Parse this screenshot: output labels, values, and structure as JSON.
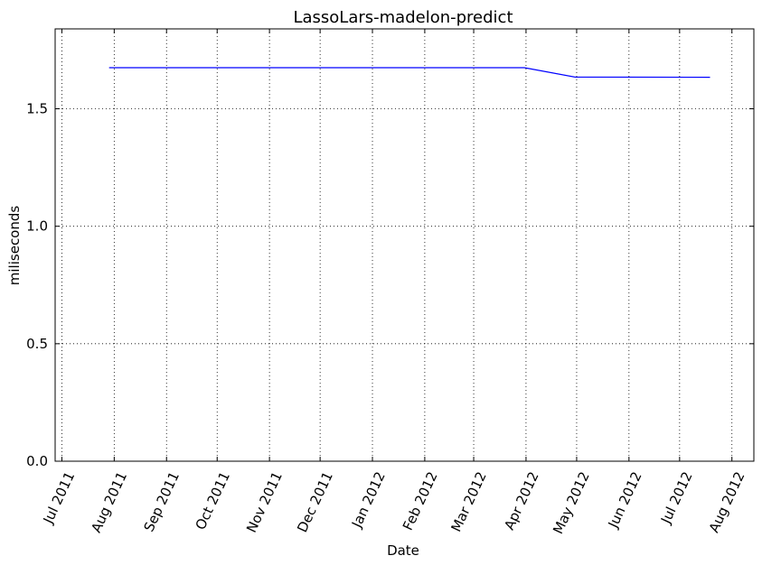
{
  "chart_data": {
    "type": "line",
    "title": "LassoLars-madelon-predict",
    "xlabel": "Date",
    "ylabel": "miliseconds",
    "x_axis": "date",
    "xlim": [
      "2011-06-27",
      "2012-08-14"
    ],
    "ylim": [
      0,
      1.84
    ],
    "grid": true,
    "grid_style": "dotted",
    "legend": "none",
    "line_color": "#0000ff",
    "x_ticks": [
      {
        "date": "2011-07-01",
        "label": "Jul 2011"
      },
      {
        "date": "2011-08-01",
        "label": "Aug 2011"
      },
      {
        "date": "2011-09-01",
        "label": "Sep 2011"
      },
      {
        "date": "2011-10-01",
        "label": "Oct 2011"
      },
      {
        "date": "2011-11-01",
        "label": "Nov 2011"
      },
      {
        "date": "2011-12-01",
        "label": "Dec 2011"
      },
      {
        "date": "2012-01-01",
        "label": "Jan 2012"
      },
      {
        "date": "2012-02-01",
        "label": "Feb 2012"
      },
      {
        "date": "2012-03-01",
        "label": "Mar 2012"
      },
      {
        "date": "2012-04-01",
        "label": "Apr 2012"
      },
      {
        "date": "2012-05-01",
        "label": "May 2012"
      },
      {
        "date": "2012-06-01",
        "label": "Jun 2012"
      },
      {
        "date": "2012-07-01",
        "label": "Jul 2012"
      },
      {
        "date": "2012-08-01",
        "label": "Aug 2012"
      }
    ],
    "y_ticks": [
      {
        "value": 0.0,
        "label": "0.0"
      },
      {
        "value": 0.5,
        "label": "0.5"
      },
      {
        "value": 1.0,
        "label": "1.0"
      },
      {
        "value": 1.5,
        "label": "1.5"
      }
    ],
    "series": [
      {
        "points": [
          {
            "x": "2011-07-29",
            "y": 1.675
          },
          {
            "x": "2012-03-31",
            "y": 1.675
          },
          {
            "x": "2012-04-30",
            "y": 1.635
          },
          {
            "x": "2012-07-19",
            "y": 1.634
          }
        ]
      }
    ]
  }
}
